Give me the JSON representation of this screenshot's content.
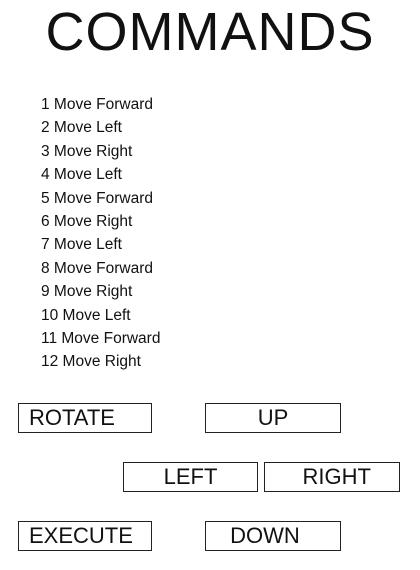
{
  "title": "COMMANDS",
  "commands": [
    "1 Move Forward",
    "2 Move Left",
    "3 Move Right",
    "4 Move Left",
    "5 Move Forward",
    "6 Move Right",
    "7 Move Left",
    "8 Move Forward",
    "9 Move Right",
    "10 Move Left",
    "11 Move Forward",
    "12 Move Right"
  ],
  "buttons": {
    "rotate": "ROTATE",
    "up": "UP",
    "left": "LEFT",
    "right": "RIGHT",
    "execute": "EXECUTE",
    "down": "DOWN"
  }
}
